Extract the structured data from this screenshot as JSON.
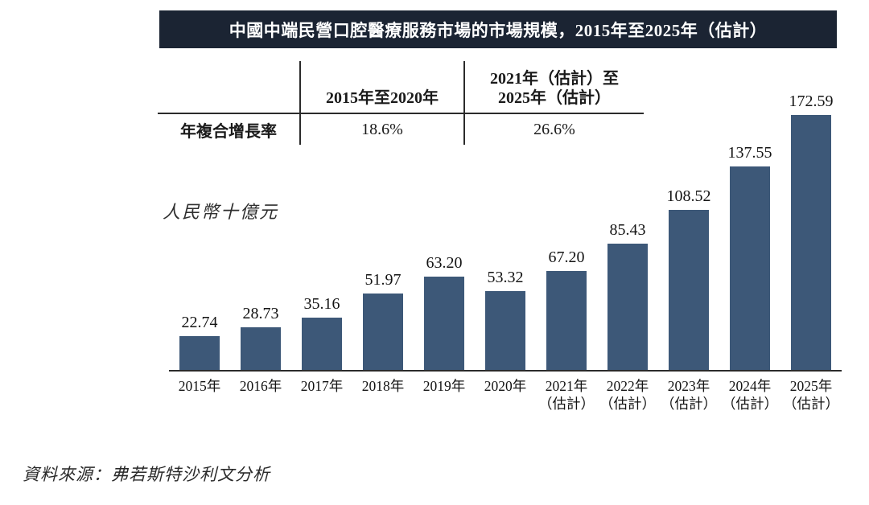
{
  "banner": {
    "title": "中國中端民營口腔醫療服務市場的市場規模，2015年至2025年（估計）",
    "bg_color": "#1B2433",
    "text_color": "#FFFFFF"
  },
  "cagr_table": {
    "row_header": "年複合增長率",
    "col_headers": [
      "2015年至2020年",
      "2021年（估計）至\n2025年（估計）"
    ],
    "values": [
      "18.6%",
      "26.6%"
    ]
  },
  "chart_data": {
    "type": "bar",
    "title": "中國中端民營口腔醫療服務市場的市場規模，2015年至2025年（估計）",
    "ylabel": "人民幣十億元",
    "xlabel": "",
    "categories": [
      "2015年",
      "2016年",
      "2017年",
      "2018年",
      "2019年",
      "2020年",
      "2021年（估計）",
      "2022年（估計）",
      "2023年（估計）",
      "2024年（估計）",
      "2025年（估計）"
    ],
    "values": [
      22.74,
      28.73,
      35.16,
      51.97,
      63.2,
      53.32,
      67.2,
      85.43,
      108.52,
      137.55,
      172.59
    ],
    "value_labels": [
      "22.74",
      "28.73",
      "35.16",
      "51.97",
      "63.20",
      "53.32",
      "67.20",
      "85.43",
      "108.52",
      "137.55",
      "172.59"
    ],
    "x_tick_labels": [
      "2015年",
      "2016年",
      "2017年",
      "2018年",
      "2019年",
      "2020年",
      "2021年\n（估計）",
      "2022年\n（估計）",
      "2023年\n（估計）",
      "2024年\n（估計）",
      "2025年\n（估計）"
    ],
    "ylim": [
      0,
      180
    ],
    "bar_color": "#3D5878",
    "axis_color": "#2b2b2b",
    "grid": false,
    "legend": null,
    "cagr_2015_2020": "18.6%",
    "cagr_2021_2025": "26.6%"
  },
  "source": {
    "text": "資料來源：弗若斯特沙利文分析"
  }
}
